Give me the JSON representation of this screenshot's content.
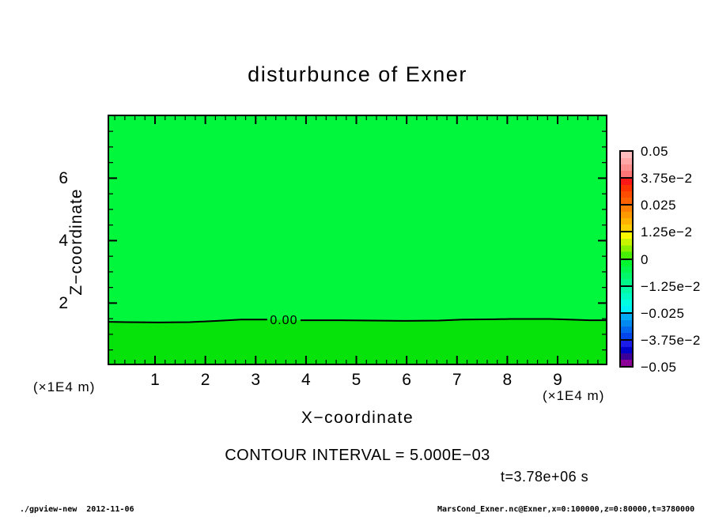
{
  "title": "disturbunce of Exner",
  "axes": {
    "x_label": "X−coordinate",
    "y_label": "Z−coordinate",
    "x_unit_left": "(×1E4 m)",
    "x_unit_right": "(×1E4 m)",
    "x_tick_labels": [
      "1",
      "2",
      "3",
      "4",
      "5",
      "6",
      "7",
      "8",
      "9"
    ],
    "y_tick_labels": [
      "6",
      "4",
      "2"
    ]
  },
  "contour_label": "0.00",
  "contour_interval_text": "CONTOUR INTERVAL = 5.000E−03",
  "time_text": "t=3.78e+06 s",
  "footer": {
    "left": "./gpview-new  2012-11-06",
    "right": "MarsCond_Exner.nc@Exner,x=0:100000,z=0:80000,t=3780000"
  },
  "colors": {
    "background": "#ffffff",
    "field_above_zero": "#00f73c",
    "field_below_zero": "#06e30b",
    "contour_line": "#000000"
  },
  "colorbar": {
    "labels": [
      "0.05",
      "3.75e−2",
      "0.025",
      "1.25e−2",
      "0",
      "−1.25e−2",
      "−0.025",
      "−3.75e−2",
      "−0.05"
    ],
    "cells": [
      [
        "#ffbcbc",
        "#ffa6a6",
        "#ff8f8f",
        "#ff7575"
      ],
      [
        "#ff1616",
        "#ff3300",
        "#ff4d00",
        "#ff6300"
      ],
      [
        "#ff7f00",
        "#ff9900",
        "#ffb300",
        "#ffcc00"
      ],
      [
        "#fdf900",
        "#c8f400",
        "#8af000",
        "#47ee00"
      ],
      [
        "#00f62e",
        "#00f64c",
        "#00f76a",
        "#00f888"
      ],
      [
        "#00fba6",
        "#00fcc4",
        "#00fde2",
        "#00f0fb"
      ],
      [
        "#00aaf4",
        "#008af0",
        "#0068ee",
        "#0046ec"
      ],
      [
        "#1c1ce8",
        "#0000cb",
        "#3b0098",
        "#8b0096"
      ]
    ]
  },
  "chart_data": {
    "type": "heatmap",
    "title": "disturbunce of Exner",
    "xlabel": "X−coordinate (×1E4 m)",
    "ylabel": "Z−coordinate (×1E4 m)",
    "xlim": [
      0,
      10
    ],
    "ylim": [
      0,
      8
    ],
    "x_ticks": [
      1,
      2,
      3,
      4,
      5,
      6,
      7,
      8,
      9
    ],
    "x_minor_step": 0.2,
    "y_ticks": [
      2,
      4,
      6
    ],
    "y_minor_step": 0.5,
    "colorbar_levels": [
      0.05,
      0.0375,
      0.025,
      0.0125,
      0,
      -0.0125,
      -0.025,
      -0.0375,
      -0.05
    ],
    "contour_interval": 0.005,
    "time_seconds": 3780000,
    "variable": "Exner",
    "source_file": "MarsCond_Exner.nc",
    "field_description": "nearly uniform field: green 0-level band above the zero contour (z≈1.45×1E4 m), slightly different green band below it",
    "zero_contour": {
      "level": 0.0,
      "label": "0.00",
      "label_x": 3.56,
      "segments": [
        {
          "points": [
            [
              0.0,
              1.4
            ],
            [
              0.43,
              1.39
            ],
            [
              1.06,
              1.38
            ],
            [
              1.69,
              1.39
            ],
            [
              2.24,
              1.43
            ],
            [
              2.71,
              1.47
            ],
            [
              3.23,
              1.47
            ]
          ]
        },
        {
          "points": [
            [
              3.89,
              1.45
            ],
            [
              4.68,
              1.45
            ],
            [
              5.31,
              1.44
            ],
            [
              6.01,
              1.43
            ],
            [
              6.64,
              1.44
            ],
            [
              7.11,
              1.47
            ],
            [
              7.74,
              1.48
            ],
            [
              8.06,
              1.49
            ],
            [
              8.84,
              1.49
            ],
            [
              9.23,
              1.47
            ],
            [
              9.63,
              1.45
            ],
            [
              9.99,
              1.45
            ]
          ]
        }
      ]
    }
  }
}
